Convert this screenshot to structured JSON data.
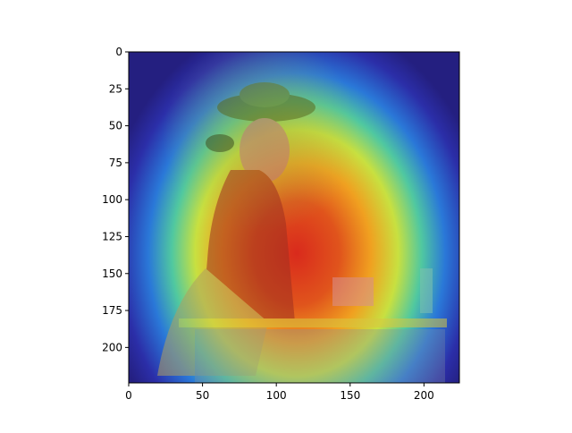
{
  "chart_data": {
    "type": "heatmap",
    "title": "",
    "xlabel": "",
    "ylabel": "",
    "xlim": [
      0,
      224
    ],
    "ylim": [
      224,
      0
    ],
    "x_ticks": [
      0,
      50,
      100,
      150,
      200
    ],
    "y_ticks": [
      0,
      25,
      50,
      75,
      100,
      125,
      150,
      175,
      200
    ],
    "colormap": "jet",
    "grid": false,
    "legend": "none",
    "background_image": "painting-boy-with-tricorne-hat-seated-at-table",
    "heat_center": [
      115,
      140
    ]
  }
}
